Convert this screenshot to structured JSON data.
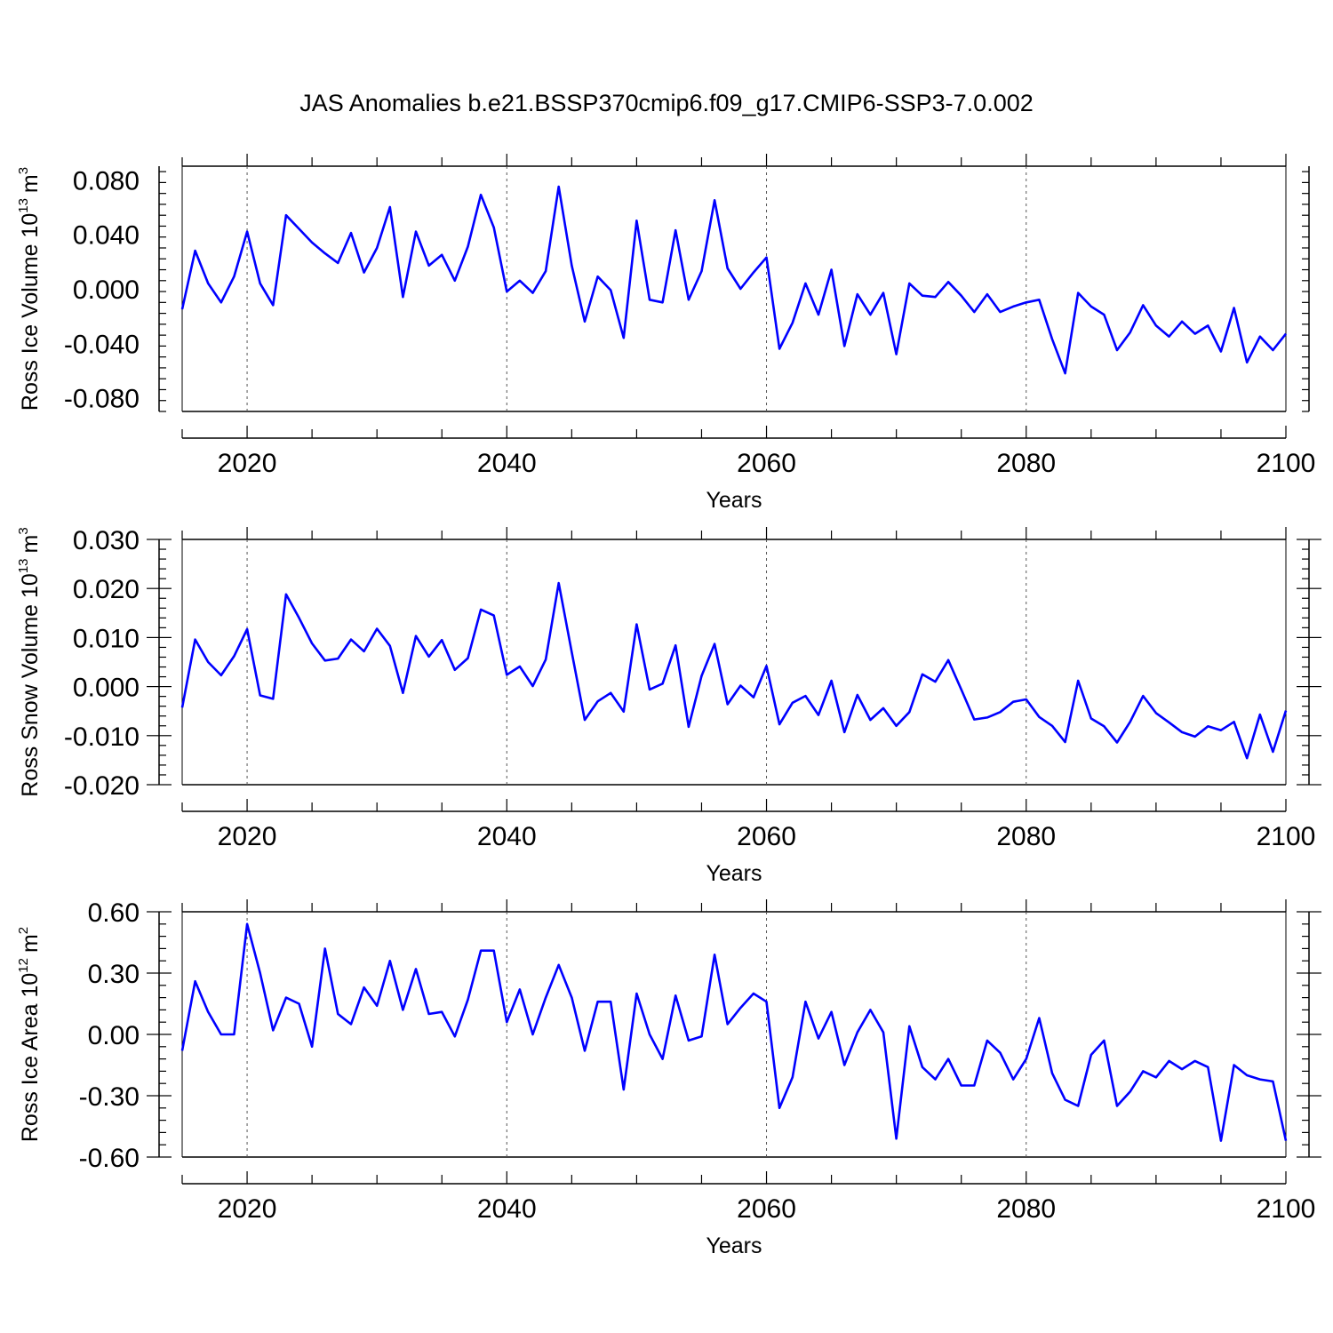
{
  "figure": {
    "title": "JAS Anomalies b.e21.BSSP370cmip6.f09_g17.CMIP6-SSP3-7.0.002"
  },
  "chart_data": [
    {
      "type": "line",
      "title": "",
      "xlabel": "Years",
      "ylabel": "Ross Ice Volume",
      "ylabel_unit": {
        "base": "10",
        "exp": "13",
        "unit": "m",
        "unit_exp": "3"
      },
      "xlim": [
        2015,
        2100
      ],
      "ylim": [
        -0.09,
        0.09
      ],
      "x_ticks": [
        2020,
        2040,
        2060,
        2080,
        2100
      ],
      "x_tick_labels": [
        "2020",
        "2040",
        "2060",
        "2080",
        "2100"
      ],
      "y_ticks": [
        -0.08,
        -0.04,
        0.0,
        0.04,
        0.08
      ],
      "y_tick_labels": [
        "-0.080",
        "-0.040",
        "0.000",
        "0.040",
        "0.080"
      ],
      "vgrid": [
        2020,
        2040,
        2060,
        2080
      ],
      "line_color": "#0000ff",
      "grid": "dashed vertical lines at major x ticks",
      "x": [
        2015,
        2016,
        2017,
        2018,
        2019,
        2020,
        2021,
        2022,
        2023,
        2024,
        2025,
        2026,
        2027,
        2028,
        2029,
        2030,
        2031,
        2032,
        2033,
        2034,
        2035,
        2036,
        2037,
        2038,
        2039,
        2040,
        2041,
        2042,
        2043,
        2044,
        2045,
        2046,
        2047,
        2048,
        2049,
        2050,
        2051,
        2052,
        2053,
        2054,
        2055,
        2056,
        2057,
        2058,
        2059,
        2060,
        2061,
        2062,
        2063,
        2064,
        2065,
        2066,
        2067,
        2068,
        2069,
        2070,
        2071,
        2072,
        2073,
        2074,
        2075,
        2076,
        2077,
        2078,
        2079,
        2080,
        2081,
        2082,
        2083,
        2084,
        2085,
        2086,
        2087,
        2088,
        2089,
        2090,
        2091,
        2092,
        2093,
        2094,
        2095,
        2096,
        2097,
        2098,
        2099,
        2100
      ],
      "values": [
        -0.015,
        0.028,
        0.004,
        -0.01,
        0.009,
        0.042,
        0.004,
        -0.012,
        0.054,
        0.044,
        0.034,
        0.026,
        0.019,
        0.041,
        0.012,
        0.03,
        0.06,
        -0.006,
        0.042,
        0.017,
        0.025,
        0.006,
        0.031,
        0.069,
        0.045,
        -0.002,
        0.006,
        -0.003,
        0.013,
        0.075,
        0.017,
        -0.024,
        0.009,
        -0.001,
        -0.036,
        0.05,
        -0.008,
        -0.01,
        0.043,
        -0.008,
        0.013,
        0.065,
        0.015,
        0.0,
        0.012,
        0.023,
        -0.044,
        -0.025,
        0.004,
        -0.019,
        0.014,
        -0.042,
        -0.004,
        -0.019,
        -0.003,
        -0.048,
        0.004,
        -0.005,
        -0.006,
        0.005,
        -0.005,
        -0.017,
        -0.004,
        -0.017,
        -0.013,
        -0.01,
        -0.008,
        -0.037,
        -0.062,
        -0.003,
        -0.013,
        -0.019,
        -0.045,
        -0.032,
        -0.012,
        -0.027,
        -0.035,
        -0.024,
        -0.033,
        -0.027,
        -0.046,
        -0.014,
        -0.054,
        -0.035,
        -0.045,
        -0.033
      ]
    },
    {
      "type": "line",
      "title": "",
      "xlabel": "Years",
      "ylabel": "Ross Snow Volume",
      "ylabel_unit": {
        "base": "10",
        "exp": "13",
        "unit": "m",
        "unit_exp": "3"
      },
      "xlim": [
        2015,
        2100
      ],
      "ylim": [
        -0.02,
        0.03
      ],
      "x_ticks": [
        2020,
        2040,
        2060,
        2080,
        2100
      ],
      "x_tick_labels": [
        "2020",
        "2040",
        "2060",
        "2080",
        "2100"
      ],
      "y_ticks": [
        -0.02,
        -0.01,
        0.0,
        0.01,
        0.02,
        0.03
      ],
      "y_tick_labels": [
        "-0.020",
        "-0.010",
        "0.000",
        "0.010",
        "0.020",
        "0.030"
      ],
      "vgrid": [
        2020,
        2040,
        2060,
        2080
      ],
      "line_color": "#0000ff",
      "grid": "dashed vertical lines at major x ticks",
      "x": [
        2015,
        2016,
        2017,
        2018,
        2019,
        2020,
        2021,
        2022,
        2023,
        2024,
        2025,
        2026,
        2027,
        2028,
        2029,
        2030,
        2031,
        2032,
        2033,
        2034,
        2035,
        2036,
        2037,
        2038,
        2039,
        2040,
        2041,
        2042,
        2043,
        2044,
        2045,
        2046,
        2047,
        2048,
        2049,
        2050,
        2051,
        2052,
        2053,
        2054,
        2055,
        2056,
        2057,
        2058,
        2059,
        2060,
        2061,
        2062,
        2063,
        2064,
        2065,
        2066,
        2067,
        2068,
        2069,
        2070,
        2071,
        2072,
        2073,
        2074,
        2075,
        2076,
        2077,
        2078,
        2079,
        2080,
        2081,
        2082,
        2083,
        2084,
        2085,
        2086,
        2087,
        2088,
        2089,
        2090,
        2091,
        2092,
        2093,
        2094,
        2095,
        2096,
        2097,
        2098,
        2099,
        2100
      ],
      "values": [
        -0.0043,
        0.0096,
        0.005,
        0.0023,
        0.0062,
        0.0117,
        -0.0018,
        -0.0025,
        0.0188,
        0.014,
        0.0088,
        0.0053,
        0.0057,
        0.0096,
        0.0072,
        0.0118,
        0.0083,
        -0.0013,
        0.0103,
        0.0061,
        0.0095,
        0.0034,
        0.0058,
        0.0157,
        0.0145,
        0.0024,
        0.0041,
        0.0001,
        0.0055,
        0.0211,
        0.007,
        -0.0068,
        -0.003,
        -0.0013,
        -0.0051,
        0.0127,
        -0.0006,
        0.0006,
        0.0084,
        -0.0082,
        0.0022,
        0.0087,
        -0.0036,
        0.0002,
        -0.0022,
        0.0042,
        -0.0077,
        -0.0033,
        -0.0019,
        -0.0058,
        0.0012,
        -0.0093,
        -0.0017,
        -0.0068,
        -0.0044,
        -0.008,
        -0.0052,
        0.0025,
        0.001,
        0.0054,
        -0.0006,
        -0.0067,
        -0.0063,
        -0.0052,
        -0.0031,
        -0.0026,
        -0.0062,
        -0.008,
        -0.0113,
        0.0012,
        -0.0065,
        -0.0081,
        -0.0114,
        -0.0072,
        -0.0019,
        -0.0054,
        -0.0073,
        -0.0093,
        -0.0102,
        -0.0081,
        -0.0089,
        -0.0072,
        -0.0146,
        -0.0057,
        -0.0133,
        -0.0049
      ]
    },
    {
      "type": "line",
      "title": "",
      "xlabel": "Years",
      "ylabel": "Ross Ice Area",
      "ylabel_unit": {
        "base": "10",
        "exp": "12",
        "unit": "m",
        "unit_exp": "2"
      },
      "xlim": [
        2015,
        2100
      ],
      "ylim": [
        -0.6,
        0.6
      ],
      "x_ticks": [
        2020,
        2040,
        2060,
        2080,
        2100
      ],
      "x_tick_labels": [
        "2020",
        "2040",
        "2060",
        "2080",
        "2100"
      ],
      "y_ticks": [
        -0.6,
        -0.3,
        0.0,
        0.3,
        0.6
      ],
      "y_tick_labels": [
        "-0.60",
        "-0.30",
        "0.00",
        "0.30",
        "0.60"
      ],
      "vgrid": [
        2020,
        2040,
        2060,
        2080
      ],
      "line_color": "#0000ff",
      "grid": "dashed vertical lines at major x ticks",
      "x": [
        2015,
        2016,
        2017,
        2018,
        2019,
        2020,
        2021,
        2022,
        2023,
        2024,
        2025,
        2026,
        2027,
        2028,
        2029,
        2030,
        2031,
        2032,
        2033,
        2034,
        2035,
        2036,
        2037,
        2038,
        2039,
        2040,
        2041,
        2042,
        2043,
        2044,
        2045,
        2046,
        2047,
        2048,
        2049,
        2050,
        2051,
        2052,
        2053,
        2054,
        2055,
        2056,
        2057,
        2058,
        2059,
        2060,
        2061,
        2062,
        2063,
        2064,
        2065,
        2066,
        2067,
        2068,
        2069,
        2070,
        2071,
        2072,
        2073,
        2074,
        2075,
        2076,
        2077,
        2078,
        2079,
        2080,
        2081,
        2082,
        2083,
        2084,
        2085,
        2086,
        2087,
        2088,
        2089,
        2090,
        2091,
        2092,
        2093,
        2094,
        2095,
        2096,
        2097,
        2098,
        2099,
        2100
      ],
      "values": [
        -0.08,
        0.26,
        0.11,
        0.0,
        0.0,
        0.54,
        0.3,
        0.02,
        0.18,
        0.15,
        -0.06,
        0.42,
        0.1,
        0.05,
        0.23,
        0.14,
        0.36,
        0.12,
        0.32,
        0.1,
        0.11,
        -0.01,
        0.17,
        0.41,
        0.41,
        0.06,
        0.22,
        0.0,
        0.18,
        0.34,
        0.18,
        -0.08,
        0.16,
        0.16,
        -0.27,
        0.2,
        0.0,
        -0.12,
        0.19,
        -0.03,
        -0.01,
        0.39,
        0.05,
        0.13,
        0.2,
        0.16,
        -0.36,
        -0.21,
        0.16,
        -0.02,
        0.11,
        -0.15,
        0.01,
        0.12,
        0.01,
        -0.51,
        0.04,
        -0.16,
        -0.22,
        -0.12,
        -0.25,
        -0.25,
        -0.03,
        -0.09,
        -0.22,
        -0.12,
        0.08,
        -0.19,
        -0.32,
        -0.35,
        -0.1,
        -0.03,
        -0.35,
        -0.28,
        -0.18,
        -0.21,
        -0.13,
        -0.17,
        -0.13,
        -0.16,
        -0.52,
        -0.15,
        -0.2,
        -0.22,
        -0.23,
        -0.52
      ]
    }
  ]
}
